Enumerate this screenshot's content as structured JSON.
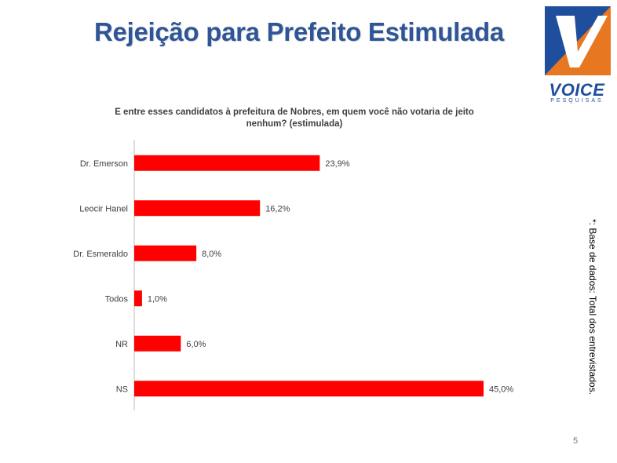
{
  "slide": {
    "title": "Rejeição para Prefeito Estimulada",
    "page_number": "5",
    "side_note": "*: Base de dados: Total dos  entrevistados."
  },
  "logo": {
    "word": "VOICE",
    "subword": "PESQUISAS",
    "colors": {
      "blue": "#1f4e9d",
      "orange": "#e87722"
    }
  },
  "chart_data": {
    "type": "bar",
    "orientation": "horizontal",
    "title": "E entre esses candidatos à prefeitura de Nobres, em quem você não votaria de jeito nenhum? (estimulada)",
    "title_lines": [
      "E entre esses candidatos à prefeitura de Nobres, em quem você não votaria de jeito",
      "nenhum? (estimulada)"
    ],
    "categories": [
      "Dr. Emerson",
      "Leocir Hanel",
      "Dr. Esmeraldo",
      "Todos",
      "NR",
      "NS"
    ],
    "values": [
      23.9,
      16.2,
      8.0,
      1.0,
      6.0,
      45.0
    ],
    "value_labels": [
      "23,9%",
      "16,2%",
      "8,0%",
      "1,0%",
      "6,0%",
      "45,0%"
    ],
    "unit": "%",
    "xlim": [
      0,
      45
    ],
    "bar_color": "#ff0000",
    "grid": false,
    "legend": "none"
  }
}
